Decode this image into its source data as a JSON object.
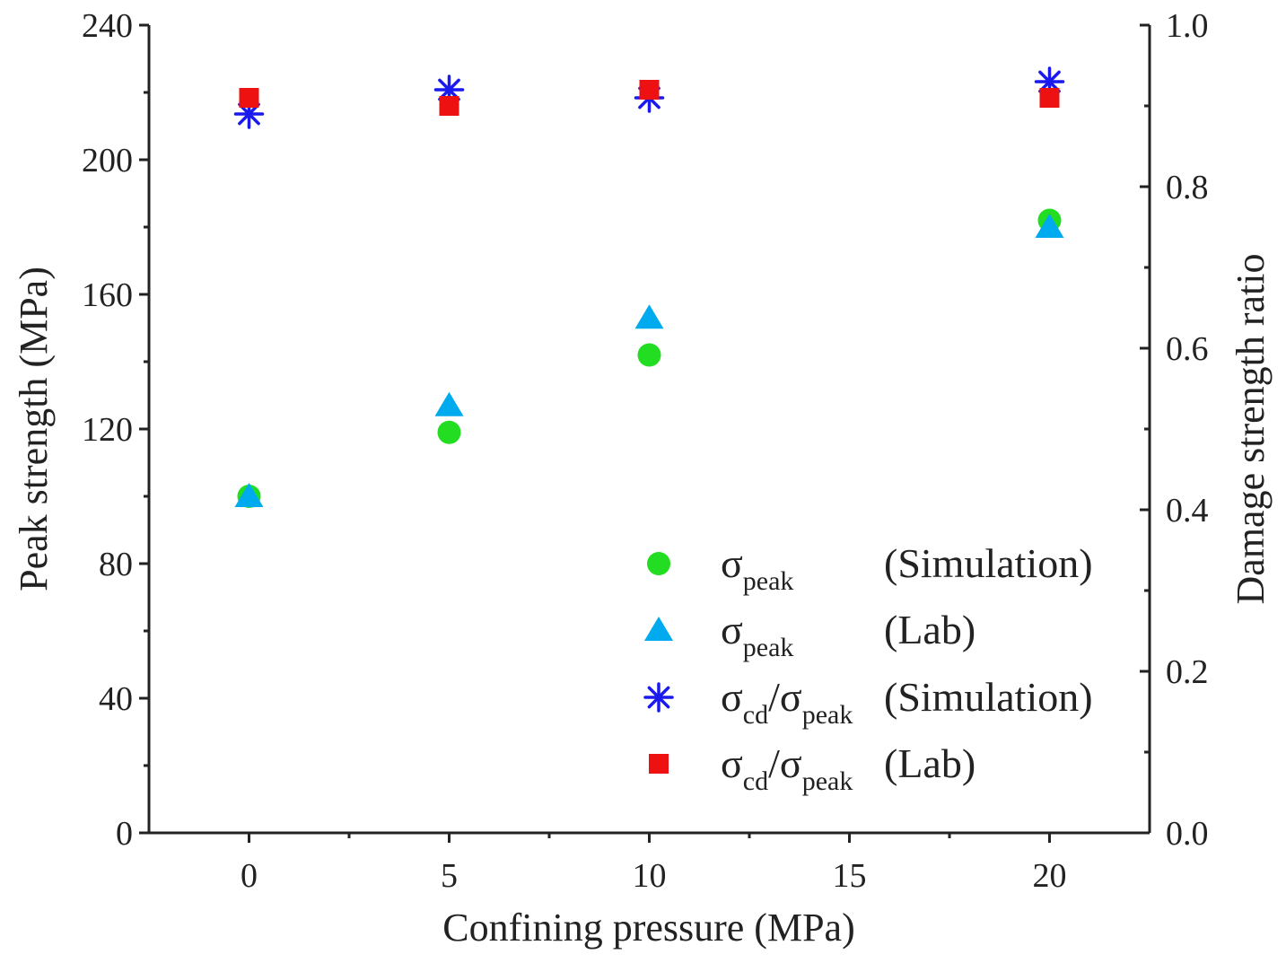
{
  "chart_data": {
    "type": "scatter",
    "title": "",
    "xlabel": "Confining pressure (MPa)",
    "ylabel": "Peak strength (MPa)",
    "y2label": "Damage strength ratio",
    "xlim": [
      -2.5,
      22.5
    ],
    "ylim": [
      0,
      240
    ],
    "y2lim": [
      0.0,
      1.0
    ],
    "x_ticks": [
      0,
      5,
      10,
      15,
      20
    ],
    "y_ticks": [
      0,
      40,
      80,
      120,
      160,
      200,
      240
    ],
    "y2_ticks": [
      "0.0",
      "0.2",
      "0.4",
      "0.6",
      "0.8",
      "1.0"
    ],
    "legend_position": "lower-right",
    "series": [
      {
        "name": "σpeak (Simulation)",
        "symbol": "σ",
        "subscript": "peak",
        "tag": "(Simulation)",
        "marker": "circle",
        "color": "#22dd22",
        "axis": "left",
        "x": [
          0,
          5,
          10,
          20
        ],
        "y": [
          100,
          119,
          142,
          182
        ]
      },
      {
        "name": "σpeak (Lab)",
        "symbol": "σ",
        "subscript": "peak",
        "tag": "(Lab)",
        "marker": "triangle",
        "color": "#00aaee",
        "axis": "left",
        "x": [
          0,
          5,
          10,
          20
        ],
        "y": [
          100,
          127,
          153,
          180
        ]
      },
      {
        "name": "σcd/σpeak (Simulation)",
        "symbol": "σ",
        "subscript": "cd",
        "symbol2": "σ",
        "subscript2": "peak",
        "tag": "(Simulation)",
        "marker": "asterisk",
        "color": "#1a1aee",
        "axis": "right",
        "x": [
          0,
          5,
          10,
          20
        ],
        "y": [
          0.89,
          0.92,
          0.91,
          0.93
        ]
      },
      {
        "name": "σcd/σpeak (Lab)",
        "symbol": "σ",
        "subscript": "cd",
        "symbol2": "σ",
        "subscript2": "peak",
        "tag": "(Lab)",
        "marker": "square",
        "color": "#ee1111",
        "axis": "right",
        "x": [
          0,
          5,
          10,
          20
        ],
        "y": [
          0.91,
          0.9,
          0.92,
          0.91
        ]
      }
    ]
  }
}
